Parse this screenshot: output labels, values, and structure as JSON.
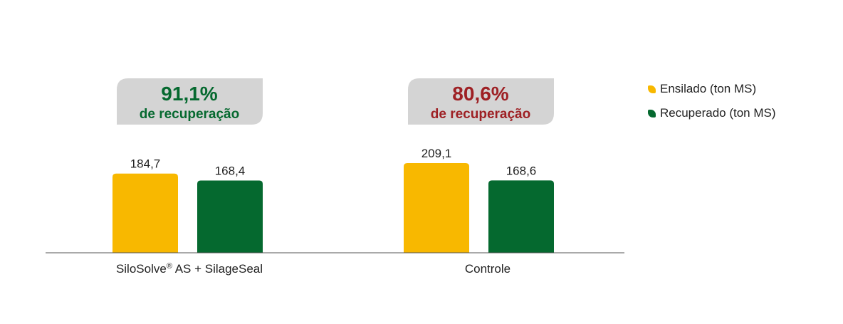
{
  "colors": {
    "ensilado": "#F8B800",
    "recuperado": "#05692F",
    "badge_bg": "#D4D4D4",
    "axis": "#555555",
    "text": "#222222",
    "recovery_good": "#05692F",
    "recovery_bad": "#9E2024"
  },
  "chart_data": {
    "type": "bar",
    "categories": [
      "SiloSolve® AS + SilageSeal",
      "Controle"
    ],
    "series": [
      {
        "name": "Ensilado (ton MS)",
        "values": [
          184.7,
          209.1
        ],
        "labels": [
          "184,7",
          "209,1"
        ],
        "color_key": "ensilado"
      },
      {
        "name": "Recuperado (ton MS)",
        "values": [
          168.4,
          168.6
        ],
        "labels": [
          "168,4",
          "168,6"
        ],
        "color_key": "recuperado"
      }
    ],
    "annotations": [
      {
        "value": "91,1%",
        "text": "de recuperação",
        "color_key": "recovery_good"
      },
      {
        "value": "80,6%",
        "text": "de recuperação",
        "color_key": "recovery_bad"
      }
    ],
    "ylim": [
      0,
      209.1
    ],
    "legend_position": "right",
    "grid": false,
    "title": "",
    "xlabel": "",
    "ylabel": ""
  },
  "legend": {
    "items": [
      {
        "label": "Ensilado (ton MS)",
        "color_key": "ensilado"
      },
      {
        "label": "Recuperado (ton MS)",
        "color_key": "recuperado"
      }
    ]
  }
}
